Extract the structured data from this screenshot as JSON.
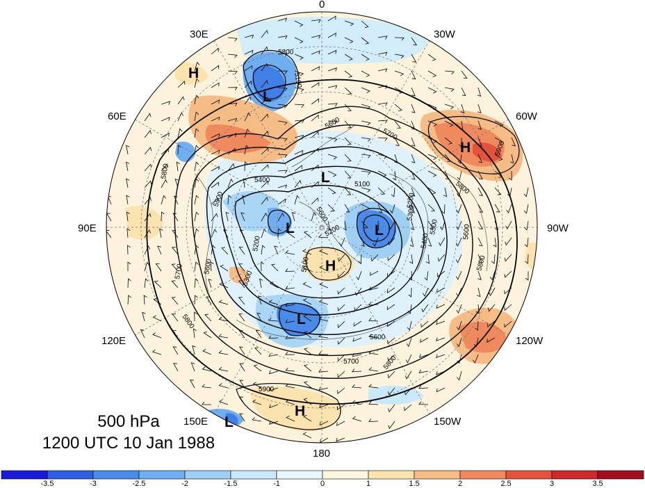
{
  "map": {
    "level": "500 hPa",
    "valid_time": "1200 UTC 10 Jan 1988",
    "longitude_labels": {
      "north": "0",
      "nnw": "30W",
      "nnw_e": "30E",
      "e60": "60E",
      "w60": "60W",
      "e90": "90E",
      "w90": "90W",
      "e120": "120E",
      "w120": "120W",
      "e150": "150E",
      "w150": "150W",
      "south": "180"
    },
    "centers": [
      {
        "label": "L",
        "kind": "low"
      },
      {
        "label": "L",
        "kind": "low"
      },
      {
        "label": "L",
        "kind": "low"
      },
      {
        "label": "L",
        "kind": "low"
      },
      {
        "label": "L",
        "kind": "low"
      },
      {
        "label": "L",
        "kind": "low"
      },
      {
        "label": "H",
        "kind": "high"
      },
      {
        "label": "H",
        "kind": "high"
      },
      {
        "label": "H",
        "kind": "high"
      },
      {
        "label": "H",
        "kind": "high"
      }
    ],
    "contour_labels": [
      "5800",
      "5100",
      "5600",
      "5700",
      "5900",
      "5800",
      "5400",
      "5100",
      "5500",
      "5600",
      "5200",
      "5800",
      "5300",
      "5200",
      "5600",
      "5500",
      "5400",
      "5600",
      "5800",
      "5800",
      "5700",
      "5200",
      "5300",
      "5100",
      "5600",
      "5700",
      "5800",
      "5900"
    ]
  },
  "colorbar": {
    "tick_labels": [
      "-3.5",
      "-3",
      "-2.5",
      "-2",
      "-1.5",
      "-1",
      "0",
      "1",
      "1.5",
      "2",
      "2.5",
      "3",
      "3.5"
    ],
    "colors": [
      "#1a1ad9",
      "#2d5fe0",
      "#4a8ae8",
      "#6faef0",
      "#9ed0f5",
      "#c9e8fb",
      "#e8f6fd",
      "#fdf6dc",
      "#fbe3b0",
      "#f6bc86",
      "#ef8a5e",
      "#e4533b",
      "#cc2a2a",
      "#a01020"
    ]
  }
}
